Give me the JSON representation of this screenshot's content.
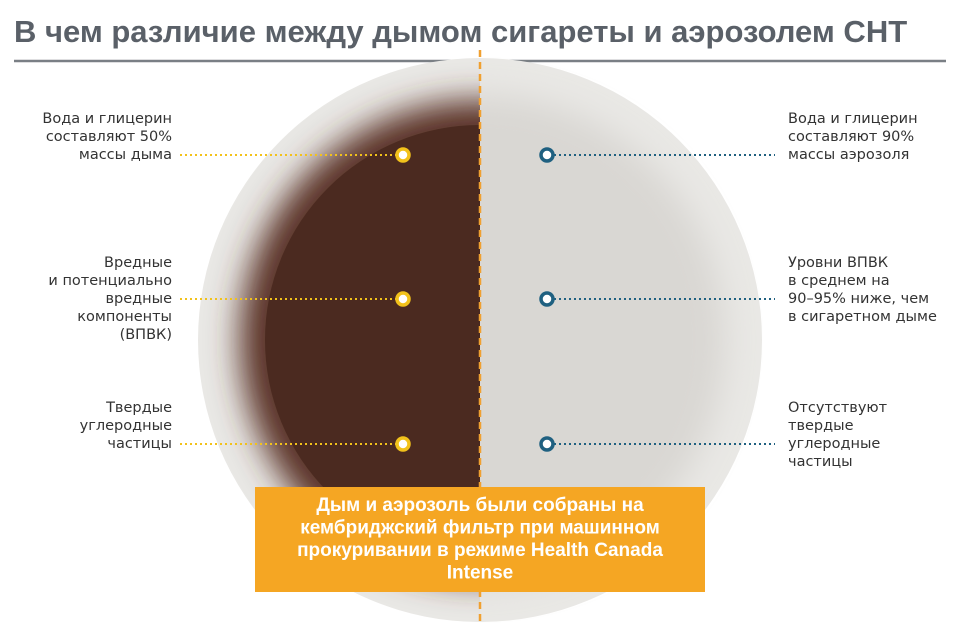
{
  "header": {
    "title": "В чем различие между дымом сигареты и аэрозолем СНТ"
  },
  "left_labels": [
    {
      "lines": [
        "Вода и глицерин",
        "составляют 50%",
        "массы дыма"
      ]
    },
    {
      "lines": [
        "Вредные",
        "и потенциально",
        "вредные",
        "компоненты",
        "(ВПВК)"
      ]
    },
    {
      "lines": [
        "Твердые",
        "углеродные",
        "частицы"
      ]
    }
  ],
  "right_labels": [
    {
      "lines": [
        "Вода и глицерин",
        "составляют 90%",
        "массы аэрозоля"
      ]
    },
    {
      "lines": [
        "Уровни ВПВК",
        "в среднем на",
        "90–95% ниже, чем",
        "в сигаретном дыме"
      ]
    },
    {
      "lines": [
        "Отсутствуют",
        "твердые",
        "углеродные",
        "частицы"
      ]
    }
  ],
  "note": {
    "lines": [
      "Дым и аэрозоль были собраны на",
      "кембриджский фильтр при машинном",
      "прокуривании в режиме Health Canada",
      "Intense"
    ]
  }
}
